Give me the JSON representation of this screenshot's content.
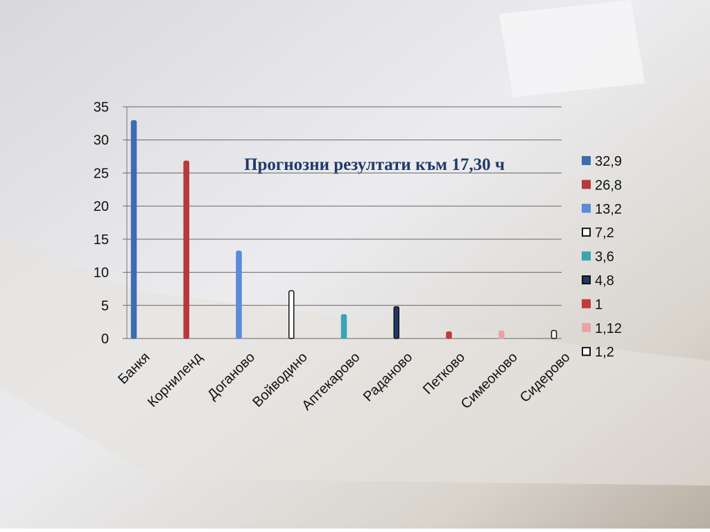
{
  "chart_data": {
    "type": "bar",
    "title": "Прогнозни резултати към 17,30 ч",
    "categories": [
      "Банкя",
      "Корниленд",
      "Доганово",
      "Войводино",
      "Аптекарово",
      "Раданово",
      "Петково",
      "Симеоново",
      "Сидерово"
    ],
    "values": [
      32.9,
      26.8,
      13.2,
      7.2,
      3.6,
      4.8,
      1,
      1.12,
      1.2
    ],
    "value_labels": [
      "32,9",
      "26,8",
      "13,2",
      "7,2",
      "3,6",
      "4,8",
      "1",
      "1,12",
      "1,2"
    ],
    "colors": [
      "#3c6db4",
      "#b8393b",
      "#5a8ad8",
      "#ffffff",
      "#39a4b6",
      "#1f3a6a",
      "#c23a3a",
      "#e8a4a4",
      "#ffffff"
    ],
    "edge_colors": [
      "#3c6db4",
      "#b8393b",
      "#5a8ad8",
      "#111111",
      "#39a4b6",
      "#111111",
      "#c23a3a",
      "#e8a4a4",
      "#111111"
    ],
    "ylim": [
      0,
      35
    ],
    "yticks": [
      0,
      5,
      10,
      15,
      20,
      25,
      30,
      35
    ],
    "grid": true,
    "legend": "right"
  }
}
